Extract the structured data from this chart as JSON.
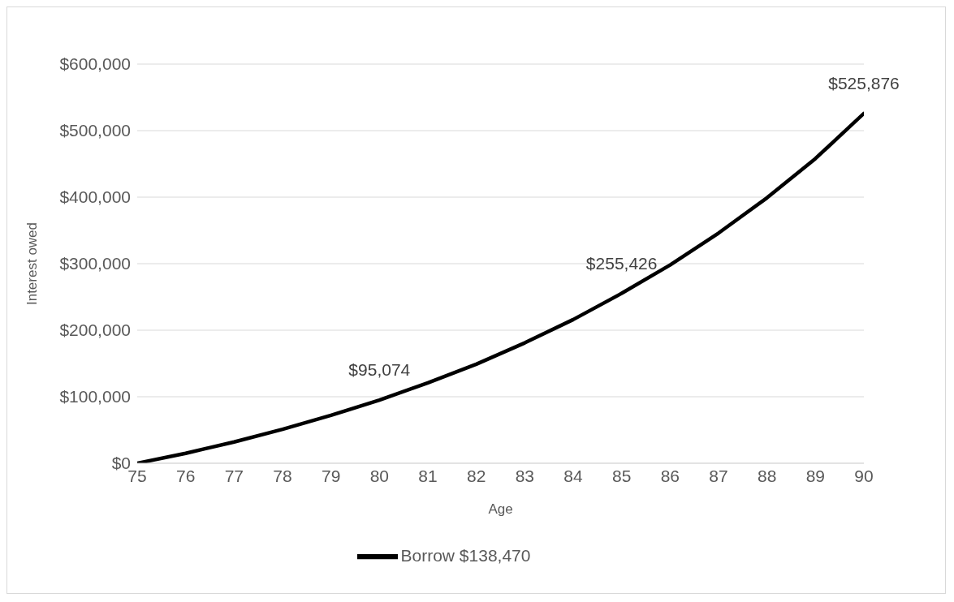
{
  "chart_data": {
    "type": "line",
    "xlabel": "Age",
    "ylabel": "Interest owed",
    "x": [
      75,
      76,
      77,
      78,
      79,
      80,
      81,
      82,
      83,
      84,
      85,
      86,
      87,
      88,
      89,
      90
    ],
    "series": [
      {
        "name": "Borrow $138,470",
        "color": "#000000",
        "values": [
          0,
          15000,
          32000,
          51000,
          72000,
          95074,
          121000,
          149000,
          181000,
          216000,
          255426,
          298000,
          346000,
          399000,
          458000,
          525876
        ],
        "value_labels": [
          null,
          null,
          null,
          null,
          null,
          "$95,074",
          null,
          null,
          null,
          null,
          "$255,426",
          null,
          null,
          null,
          null,
          "$525,876"
        ]
      }
    ],
    "xlim": [
      75,
      90
    ],
    "xticks": [
      75,
      76,
      77,
      78,
      79,
      80,
      81,
      82,
      83,
      84,
      85,
      86,
      87,
      88,
      89,
      90
    ],
    "ylim": [
      0,
      600000
    ],
    "yticks": [
      {
        "value": 0,
        "label": "$0"
      },
      {
        "value": 100000,
        "label": "$100,000"
      },
      {
        "value": 200000,
        "label": "$200,000"
      },
      {
        "value": 300000,
        "label": "$300,000"
      },
      {
        "value": 400000,
        "label": "$400,000"
      },
      {
        "value": 500000,
        "label": "$500,000"
      },
      {
        "value": 600000,
        "label": "$600,000"
      }
    ],
    "grid": "y",
    "legend": "bottom",
    "marker": "none",
    "line_style": "solid"
  }
}
